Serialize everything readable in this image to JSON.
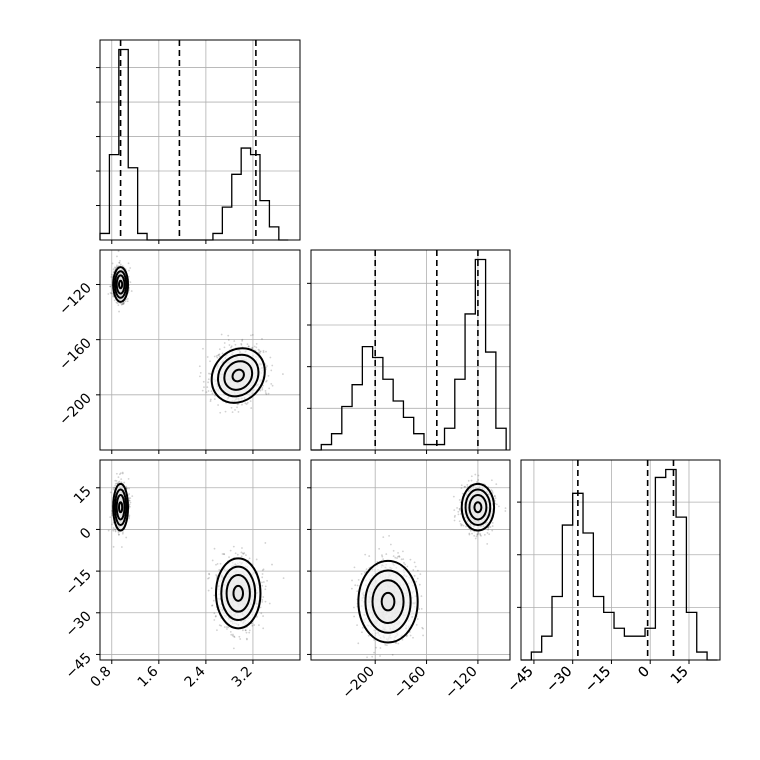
{
  "chart_data": [
    {
      "type": "histogram",
      "panel": "hist-param-1",
      "title": "",
      "xlabel": "",
      "ylabel": "",
      "grid": true,
      "xlim": [
        0.6,
        4.0
      ],
      "bins": [
        0.6,
        0.76,
        0.92,
        1.08,
        1.24,
        1.4,
        1.56,
        1.72,
        1.88,
        2.04,
        2.2,
        2.36,
        2.52,
        2.68,
        2.84,
        3.0,
        3.16,
        3.32,
        3.48,
        3.64,
        3.8
      ],
      "counts": [
        1,
        13,
        29,
        11,
        1,
        0,
        0,
        0,
        0,
        0,
        0,
        0,
        1,
        5,
        10,
        14,
        13,
        6,
        2,
        0
      ],
      "quantiles": [
        0.95,
        1.95,
        3.25
      ],
      "yticks_count": 5
    },
    {
      "type": "histogram",
      "panel": "hist-param-2",
      "title": "",
      "xlabel": "",
      "ylabel": "",
      "grid": true,
      "xlim": [
        -250,
        -95
      ],
      "bins": [
        -250,
        -242,
        -234,
        -226,
        -218,
        -210,
        -202,
        -194,
        -186,
        -178,
        -170,
        -162,
        -154,
        -146,
        -138,
        -130,
        -122,
        -114,
        -106,
        -98
      ],
      "counts": [
        0,
        1,
        3,
        8,
        12,
        19,
        17,
        13,
        9,
        6,
        3,
        1,
        1,
        4,
        13,
        25,
        35,
        18,
        4
      ],
      "quantiles": [
        -200,
        -152,
        -120
      ],
      "yticks_count": 4,
      "xticks": [
        -200,
        -160,
        -120
      ]
    },
    {
      "type": "histogram",
      "panel": "hist-param-3",
      "title": "",
      "xlabel": "",
      "ylabel": "",
      "grid": true,
      "xlim": [
        -50,
        27
      ],
      "bins": [
        -50,
        -46,
        -42,
        -38,
        -34,
        -30,
        -26,
        -22,
        -18,
        -14,
        -10,
        -6,
        -2,
        2,
        6,
        10,
        14,
        18,
        22,
        26
      ],
      "counts": [
        0,
        1,
        3,
        8,
        17,
        21,
        16,
        8,
        6,
        4,
        3,
        3,
        4,
        23,
        24,
        18,
        6,
        1,
        0
      ],
      "quantiles": [
        -28,
        -1,
        9
      ],
      "yticks_count": 3,
      "xticks": [
        -45,
        -30,
        -15,
        0,
        15
      ]
    },
    {
      "type": "scatter",
      "panel": "scatter-p1-p2",
      "title": "",
      "xlabel": "",
      "ylabel": "",
      "grid": true,
      "xlim": [
        0.6,
        4.0
      ],
      "ylim": [
        -240,
        -95
      ],
      "yticks": [
        -120,
        -160,
        -200
      ],
      "clusters": [
        {
          "center": [
            0.95,
            -120
          ],
          "spread": [
            0.06,
            6
          ],
          "rotation_deg": 0
        },
        {
          "center": [
            2.95,
            -186
          ],
          "spread": [
            0.2,
            10
          ],
          "rotation_deg": 40
        }
      ]
    },
    {
      "type": "scatter",
      "panel": "scatter-p1-p3",
      "title": "",
      "xlabel": "",
      "ylabel": "",
      "grid": true,
      "xlim": [
        0.6,
        4.0
      ],
      "ylim": [
        -47,
        25
      ],
      "yticks": [
        15,
        0,
        -15,
        -30,
        -45
      ],
      "xticks": [
        0.8,
        1.6,
        2.4,
        3.2
      ],
      "clusters": [
        {
          "center": [
            0.95,
            8
          ],
          "spread": [
            0.06,
            4
          ],
          "rotation_deg": 0
        },
        {
          "center": [
            2.95,
            -23
          ],
          "spread": [
            0.18,
            6
          ],
          "rotation_deg": 0
        }
      ]
    },
    {
      "type": "scatter",
      "panel": "scatter-p2-p3",
      "title": "",
      "xlabel": "",
      "ylabel": "",
      "grid": true,
      "xlim": [
        -250,
        -95
      ],
      "ylim": [
        -47,
        25
      ],
      "clusters": [
        {
          "center": [
            -190,
            -26
          ],
          "spread": [
            11,
            7
          ],
          "rotation_deg": 0
        },
        {
          "center": [
            -120,
            8
          ],
          "spread": [
            6,
            4
          ],
          "rotation_deg": 0
        }
      ]
    }
  ]
}
